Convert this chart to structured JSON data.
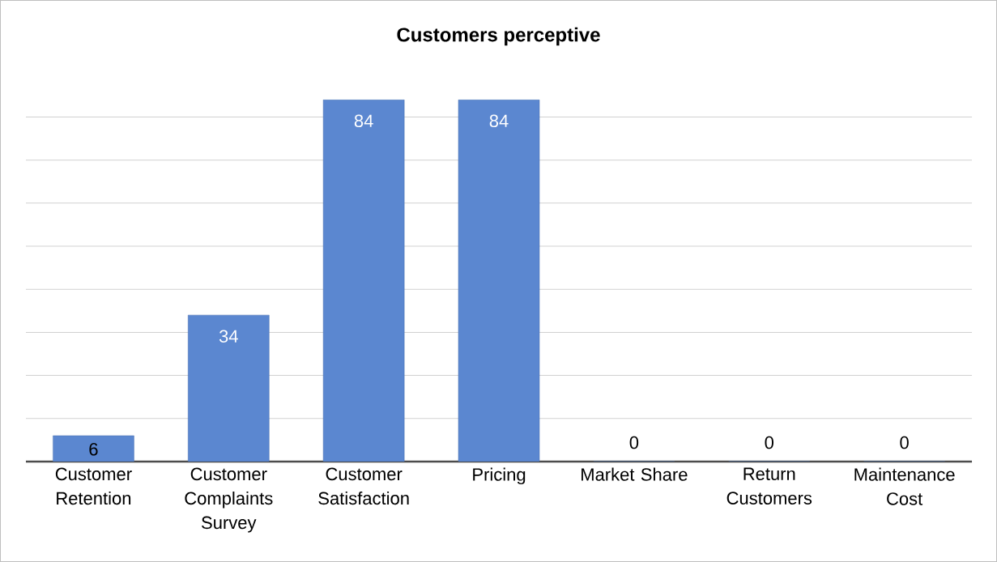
{
  "chart_data": {
    "type": "bar",
    "title": "Customers perceptive",
    "categories": [
      "Customer Retention",
      "Customer Complaints Survey",
      "Customer Satisfaction",
      "Pricing",
      "Market Share",
      "Return Customers",
      "Maintenance Cost"
    ],
    "values": [
      6,
      34,
      84,
      84,
      0,
      0,
      0
    ],
    "color": "#5b87d0",
    "data_labels": true,
    "grid": "y",
    "tick_labels": "x"
  }
}
